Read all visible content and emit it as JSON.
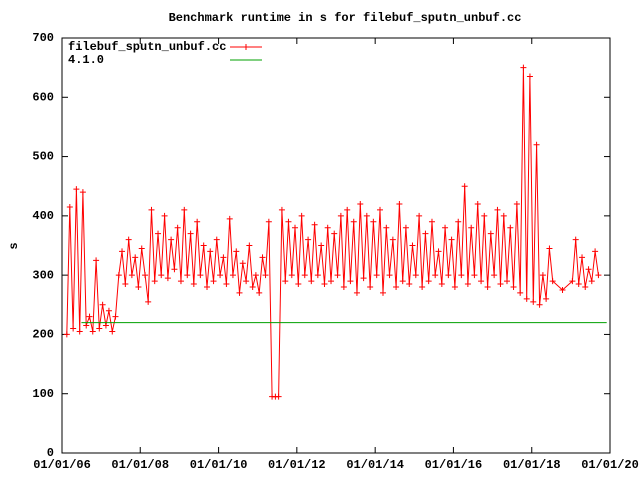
{
  "chart_data": {
    "type": "line",
    "title": "Benchmark runtime in s for filebuf_sputn_unbuf.cc",
    "y_label": "s",
    "legend": "top-left",
    "xlim": [
      "2006-01-01",
      "2020-01-01"
    ],
    "xticks": [
      {
        "value": "2006-01-01",
        "label": "01/01/06"
      },
      {
        "value": "2008-01-01",
        "label": "01/01/08"
      },
      {
        "value": "2010-01-01",
        "label": "01/01/10"
      },
      {
        "value": "2012-01-01",
        "label": "01/01/12"
      },
      {
        "value": "2014-01-01",
        "label": "01/01/14"
      },
      {
        "value": "2016-01-01",
        "label": "01/01/16"
      },
      {
        "value": "2018-01-01",
        "label": "01/01/18"
      },
      {
        "value": "2020-01-01",
        "label": "01/01/20"
      }
    ],
    "ylim": [
      0,
      700
    ],
    "yticks": [
      0,
      100,
      200,
      300,
      400,
      500,
      600,
      700
    ],
    "series": [
      {
        "name": "filebuf_sputn_unbuf.cc",
        "color": "#ff0000",
        "marker": "+",
        "x": [
          "2006-02-15",
          "2006-03-15",
          "2006-04-15",
          "2006-05-15",
          "2006-06-15",
          "2006-07-15",
          "2006-08-15",
          "2006-09-15",
          "2006-10-15",
          "2006-11-15",
          "2006-12-15",
          "2007-01-15",
          "2007-02-15",
          "2007-03-15",
          "2007-04-15",
          "2007-05-15",
          "2007-06-15",
          "2007-07-15",
          "2007-08-15",
          "2007-09-15",
          "2007-10-15",
          "2007-11-15",
          "2007-12-15",
          "2008-01-15",
          "2008-02-15",
          "2008-03-15",
          "2008-04-15",
          "2008-05-15",
          "2008-06-15",
          "2008-07-15",
          "2008-08-15",
          "2008-09-15",
          "2008-10-15",
          "2008-11-15",
          "2008-12-15",
          "2009-01-15",
          "2009-02-15",
          "2009-03-15",
          "2009-04-15",
          "2009-05-15",
          "2009-06-15",
          "2009-07-15",
          "2009-08-15",
          "2009-09-15",
          "2009-10-15",
          "2009-11-15",
          "2009-12-15",
          "2010-01-15",
          "2010-02-15",
          "2010-03-15",
          "2010-04-15",
          "2010-05-15",
          "2010-06-15",
          "2010-07-15",
          "2010-08-15",
          "2010-09-15",
          "2010-10-15",
          "2010-11-15",
          "2010-12-15",
          "2011-01-15",
          "2011-02-15",
          "2011-03-15",
          "2011-04-15",
          "2011-05-15",
          "2011-06-15",
          "2011-07-15",
          "2011-08-15",
          "2011-09-15",
          "2011-10-15",
          "2011-11-15",
          "2011-12-15",
          "2012-01-15",
          "2012-02-15",
          "2012-03-15",
          "2012-04-15",
          "2012-05-15",
          "2012-06-15",
          "2012-07-15",
          "2012-08-15",
          "2012-09-15",
          "2012-10-15",
          "2012-11-15",
          "2012-12-15",
          "2013-01-15",
          "2013-02-15",
          "2013-03-15",
          "2013-04-15",
          "2013-05-15",
          "2013-06-15",
          "2013-07-15",
          "2013-08-15",
          "2013-09-15",
          "2013-10-15",
          "2013-11-15",
          "2013-12-15",
          "2014-01-15",
          "2014-02-15",
          "2014-03-15",
          "2014-04-15",
          "2014-05-15",
          "2014-06-15",
          "2014-07-15",
          "2014-08-15",
          "2014-09-15",
          "2014-10-15",
          "2014-11-15",
          "2014-12-15",
          "2015-01-15",
          "2015-02-15",
          "2015-03-15",
          "2015-04-15",
          "2015-05-15",
          "2015-06-15",
          "2015-07-15",
          "2015-08-15",
          "2015-09-15",
          "2015-10-15",
          "2015-11-15",
          "2015-12-15",
          "2016-01-15",
          "2016-02-15",
          "2016-03-15",
          "2016-04-15",
          "2016-05-15",
          "2016-06-15",
          "2016-07-15",
          "2016-08-15",
          "2016-09-15",
          "2016-10-15",
          "2016-11-15",
          "2016-12-15",
          "2017-01-15",
          "2017-02-15",
          "2017-03-15",
          "2017-04-15",
          "2017-05-15",
          "2017-06-15",
          "2017-07-15",
          "2017-08-15",
          "2017-09-15",
          "2017-10-15",
          "2017-11-15",
          "2017-12-15",
          "2018-01-15",
          "2018-02-15",
          "2018-03-15",
          "2018-04-15",
          "2018-05-15",
          "2018-06-15",
          "2018-07-15",
          "2018-10-15",
          "2019-01-15",
          "2019-02-15",
          "2019-03-15",
          "2019-04-15",
          "2019-05-15",
          "2019-06-15",
          "2019-07-15",
          "2019-08-15",
          "2019-09-15"
        ],
        "values": [
          200,
          415,
          210,
          445,
          205,
          440,
          215,
          230,
          205,
          325,
          210,
          250,
          215,
          240,
          205,
          230,
          300,
          340,
          285,
          360,
          300,
          330,
          280,
          345,
          300,
          255,
          410,
          290,
          370,
          300,
          400,
          295,
          360,
          310,
          380,
          290,
          410,
          300,
          370,
          285,
          390,
          300,
          350,
          280,
          340,
          290,
          360,
          300,
          330,
          285,
          395,
          300,
          340,
          270,
          320,
          290,
          350,
          280,
          300,
          270,
          330,
          300,
          390,
          95,
          95,
          95,
          410,
          290,
          390,
          300,
          380,
          285,
          400,
          300,
          360,
          290,
          385,
          300,
          350,
          285,
          380,
          290,
          370,
          300,
          400,
          280,
          410,
          290,
          390,
          270,
          420,
          295,
          400,
          280,
          390,
          300,
          410,
          270,
          380,
          300,
          360,
          280,
          420,
          290,
          380,
          285,
          350,
          300,
          400,
          280,
          370,
          290,
          390,
          300,
          340,
          285,
          380,
          300,
          360,
          280,
          390,
          300,
          450,
          285,
          380,
          300,
          420,
          290,
          400,
          280,
          370,
          300,
          410,
          285,
          400,
          290,
          380,
          280,
          420,
          270,
          650,
          260,
          635,
          255,
          520,
          250,
          300,
          260,
          345,
          290,
          275,
          290,
          360,
          285,
          330,
          280,
          310,
          290,
          340,
          300
        ]
      },
      {
        "name": "4.1.0",
        "color": "#00a000",
        "x": [
          "2006-07-01",
          "2019-12-01"
        ],
        "values": [
          220,
          220
        ]
      }
    ]
  }
}
